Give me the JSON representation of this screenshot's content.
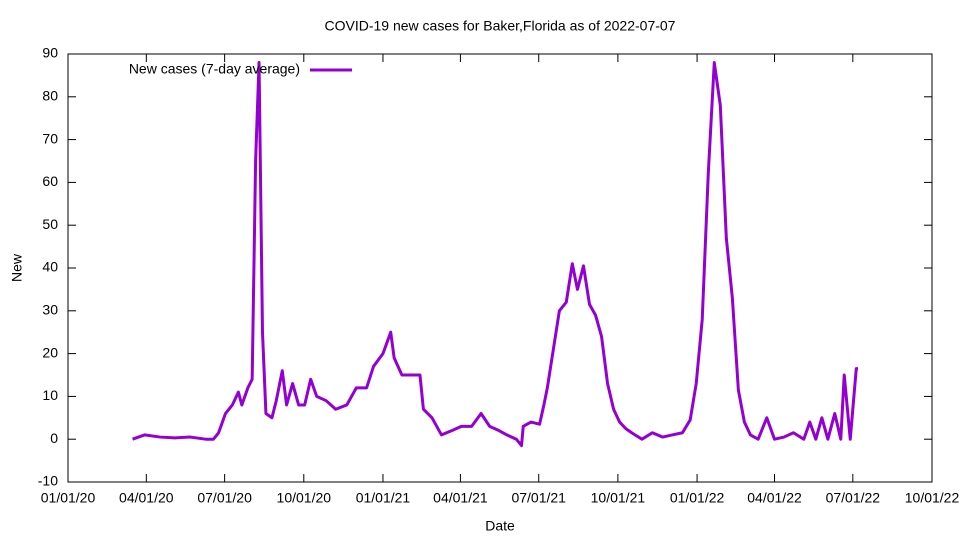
{
  "chart_data": {
    "type": "line",
    "title": "COVID-19 new cases for Baker,Florida as of 2022-07-07",
    "x_label": "Date",
    "y_label": "New",
    "legend": "top-left",
    "grid": false,
    "xlim": [
      "2020-01-01",
      "2022-10-01"
    ],
    "xticks": [
      {
        "value": "2020-01-01",
        "label": "01/01/20"
      },
      {
        "value": "2020-04-01",
        "label": "04/01/20"
      },
      {
        "value": "2020-07-01",
        "label": "07/01/20"
      },
      {
        "value": "2020-10-01",
        "label": "10/01/20"
      },
      {
        "value": "2021-01-01",
        "label": "01/01/21"
      },
      {
        "value": "2021-04-01",
        "label": "04/01/21"
      },
      {
        "value": "2021-07-01",
        "label": "07/01/21"
      },
      {
        "value": "2021-10-01",
        "label": "10/01/21"
      },
      {
        "value": "2022-01-01",
        "label": "01/01/22"
      },
      {
        "value": "2022-04-01",
        "label": "04/01/22"
      },
      {
        "value": "2022-07-01",
        "label": "07/01/22"
      },
      {
        "value": "2022-10-01",
        "label": "10/01/22"
      }
    ],
    "ylim": [
      -10,
      90
    ],
    "yticks": [
      -10,
      0,
      10,
      20,
      30,
      40,
      50,
      60,
      70,
      80,
      90
    ],
    "x": [
      "2020-03-16",
      "2020-03-30",
      "2020-04-17",
      "2020-05-04",
      "2020-05-22",
      "2020-06-09",
      "2020-06-18",
      "2020-06-24",
      "2020-07-02",
      "2020-07-10",
      "2020-07-17",
      "2020-07-21",
      "2020-07-28",
      "2020-08-02",
      "2020-08-06",
      "2020-08-10",
      "2020-08-14",
      "2020-08-18",
      "2020-08-25",
      "2020-08-30",
      "2020-09-06",
      "2020-09-11",
      "2020-09-18",
      "2020-09-25",
      "2020-10-02",
      "2020-10-09",
      "2020-10-16",
      "2020-10-27",
      "2020-11-07",
      "2020-11-20",
      "2020-12-01",
      "2020-12-13",
      "2020-12-21",
      "2021-01-01",
      "2021-01-10",
      "2021-01-14",
      "2021-01-23",
      "2021-02-04",
      "2021-02-13",
      "2021-02-17",
      "2021-02-27",
      "2021-03-10",
      "2021-03-22",
      "2021-04-02",
      "2021-04-14",
      "2021-04-25",
      "2021-05-05",
      "2021-05-16",
      "2021-05-25",
      "2021-06-05",
      "2021-06-11",
      "2021-06-13",
      "2021-06-22",
      "2021-07-02",
      "2021-07-07",
      "2021-07-11",
      "2021-07-18",
      "2021-07-25",
      "2021-08-02",
      "2021-08-09",
      "2021-08-15",
      "2021-08-22",
      "2021-08-29",
      "2021-09-05",
      "2021-09-12",
      "2021-09-19",
      "2021-09-26",
      "2021-10-03",
      "2021-10-10",
      "2021-10-17",
      "2021-10-29",
      "2021-11-10",
      "2021-11-22",
      "2021-12-03",
      "2021-12-15",
      "2021-12-24",
      "2021-12-31",
      "2022-01-07",
      "2022-01-14",
      "2022-01-21",
      "2022-01-28",
      "2022-02-04",
      "2022-02-11",
      "2022-02-18",
      "2022-02-25",
      "2022-03-04",
      "2022-03-13",
      "2022-03-23",
      "2022-04-01",
      "2022-04-12",
      "2022-04-23",
      "2022-05-05",
      "2022-05-12",
      "2022-05-19",
      "2022-05-26",
      "2022-06-02",
      "2022-06-10",
      "2022-06-17",
      "2022-06-21",
      "2022-06-28",
      "2022-07-05",
      "2022-07-07"
    ],
    "series": [
      {
        "name": "New cases (7-day average)",
        "color": "#9400d3",
        "values": [
          0,
          1,
          0.5,
          0.3,
          0.5,
          0,
          0,
          1.5,
          6,
          8,
          11,
          8,
          12,
          14,
          65,
          88,
          25,
          6,
          5,
          9,
          16,
          8,
          13,
          8,
          8,
          14,
          10,
          9,
          7,
          8,
          12,
          12,
          17,
          20,
          25,
          19,
          15,
          15,
          15,
          7,
          5,
          1,
          2,
          3,
          3,
          6,
          3,
          2,
          1,
          0,
          -1.5,
          3,
          4,
          3.5,
          8,
          12,
          21,
          30,
          32,
          41,
          35,
          40.5,
          31.5,
          29,
          24,
          13,
          7,
          4,
          2.5,
          1.5,
          0,
          1.5,
          0.5,
          1,
          1.5,
          4.5,
          13,
          28,
          62,
          88,
          78,
          47,
          33,
          11.5,
          4,
          1,
          0,
          5,
          0,
          0.5,
          1.5,
          0,
          4,
          0,
          5,
          0,
          6,
          0,
          15,
          0,
          16.5,
          16.5
        ]
      }
    ]
  }
}
